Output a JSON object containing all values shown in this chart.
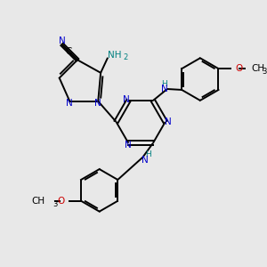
{
  "bg_color": "#e8e8e8",
  "bond_color": "#000000",
  "N_color": "#0000cc",
  "C_color": "#000000",
  "O_color": "#cc0000",
  "NH_color": "#008080",
  "figsize": [
    3.0,
    3.0
  ],
  "dpi": 100,
  "xlim": [
    0,
    10
  ],
  "ylim": [
    0,
    10
  ]
}
